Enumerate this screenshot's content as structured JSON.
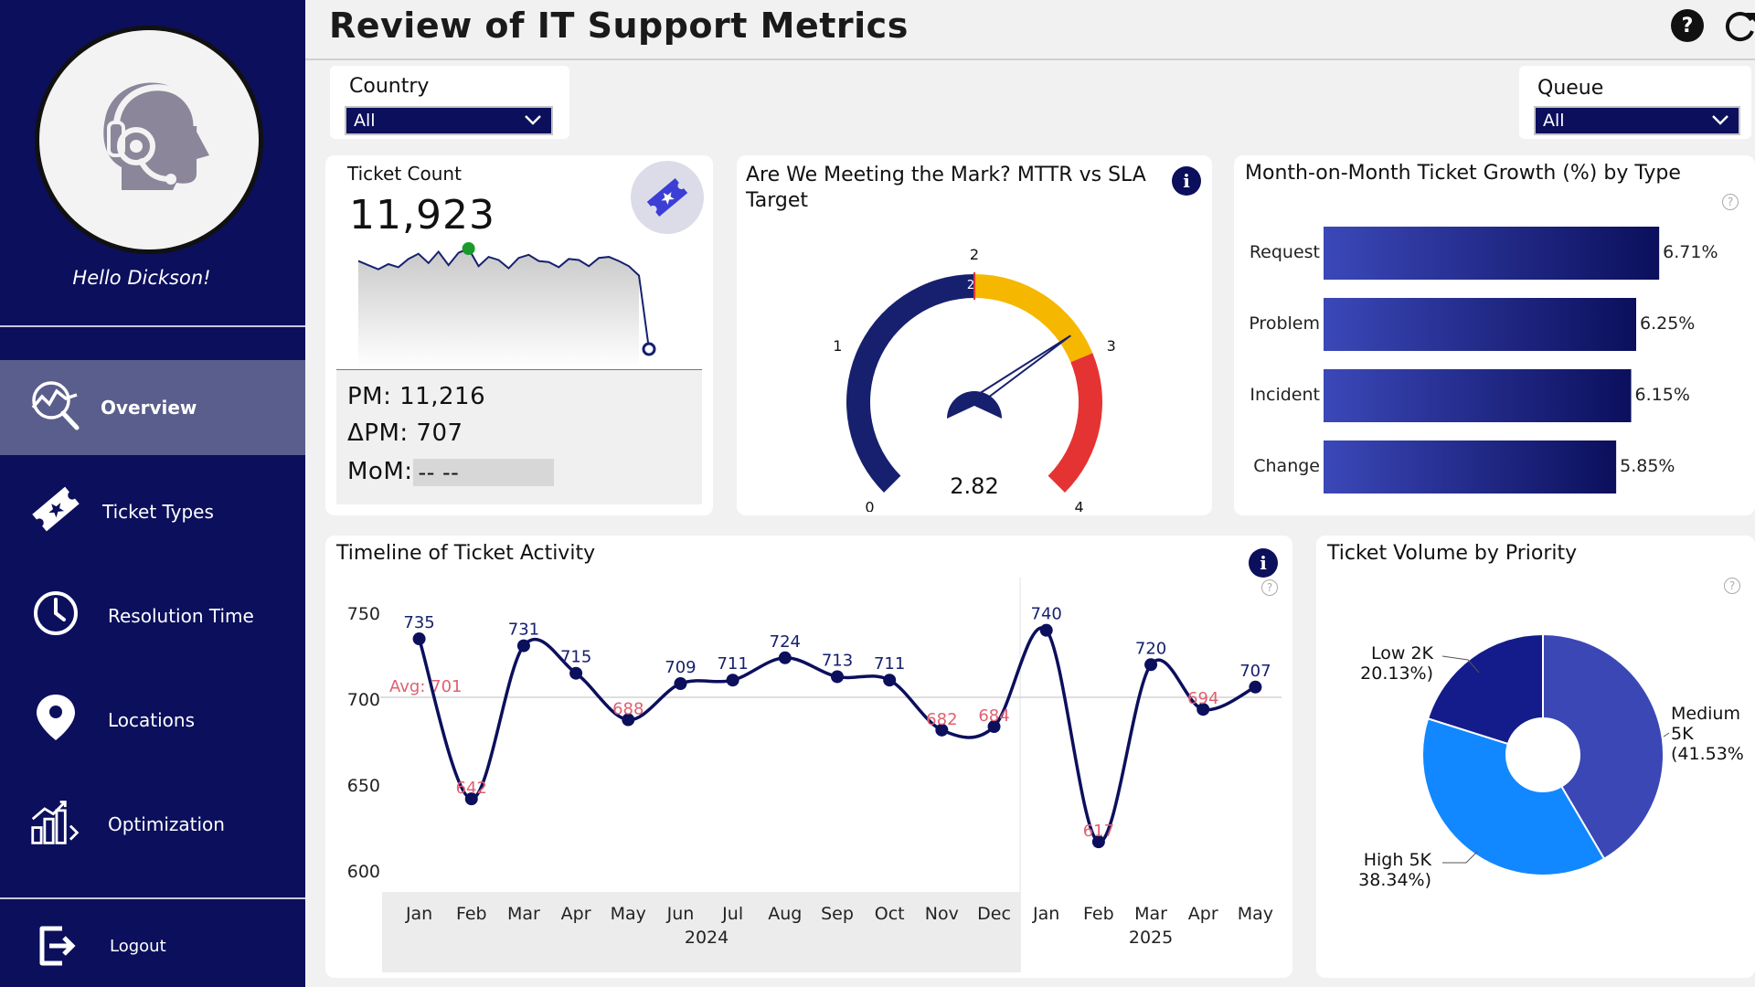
{
  "sidebar": {
    "greeting": "Hello Dickson!",
    "items": [
      {
        "label": "Overview",
        "icon": "chart-search-icon",
        "active": true
      },
      {
        "label": "Ticket Types",
        "icon": "ticket-icon"
      },
      {
        "label": "Resolution Time",
        "icon": "clock-icon"
      },
      {
        "label": "Locations",
        "icon": "map-pin-icon"
      },
      {
        "label": "Optimization",
        "icon": "bar-growth-icon"
      }
    ],
    "logout": "Logout"
  },
  "header": {
    "title": "Review of IT Support Metrics"
  },
  "filters": {
    "country": {
      "label": "Country",
      "value": "All"
    },
    "queue": {
      "label": "Queue",
      "value": "All"
    }
  },
  "kpi": {
    "label": "Ticket Count",
    "value": "11,923",
    "pm": "PM: 11,216",
    "delta_pm": "ΔPM: 707",
    "mom_label": "MoM:",
    "mom_value": "-- --"
  },
  "gauge": {
    "title_line1": "Are We Meeting the Mark? MTTR vs SLA",
    "title_line2": "Target",
    "value_label": "2.82",
    "target_label": "2",
    "tick_labels": [
      "0",
      "1",
      "2",
      "3",
      "4"
    ]
  },
  "growth": {
    "title": "Month-on-Month Ticket Growth (%) by Type"
  },
  "timeline": {
    "title": "Timeline of Ticket Activity",
    "avg_label": "Avg: 701",
    "year_labels": [
      "2024",
      "2025"
    ]
  },
  "priority": {
    "title": "Ticket Volume by Priority",
    "labels": {
      "low_1": "Low 2K",
      "low_2": "20.13%)",
      "medium_1": "Medium",
      "medium_2": "5K",
      "medium_3": "(41.53%",
      "high_1": "High 5K",
      "high_2": "38.34%)"
    }
  },
  "chart_data": [
    {
      "type": "line",
      "title": "Ticket Count sparkline",
      "values": [
        700,
        692,
        684,
        694,
        688,
        704,
        714,
        696,
        718,
        692,
        716,
        724,
        690,
        708,
        702,
        686,
        706,
        712,
        700,
        698,
        688,
        704,
        702,
        690,
        706,
        708,
        700,
        690,
        672,
        530
      ],
      "highlight_max_index": 11,
      "highlight_last": true
    },
    {
      "type": "gauge",
      "title": "Are We Meeting the Mark? MTTR vs SLA Target",
      "min": 0,
      "max": 4,
      "value": 2.82,
      "target": 2,
      "bands": [
        {
          "from": 0,
          "to": 2,
          "color": "#16206e"
        },
        {
          "from": 2,
          "to": 3,
          "color": "#f5b700"
        },
        {
          "from": 3,
          "to": 4,
          "color": "#e53333"
        }
      ]
    },
    {
      "type": "bar",
      "title": "Month-on-Month Ticket Growth (%) by Type",
      "categories": [
        "Request",
        "Problem",
        "Incident",
        "Change"
      ],
      "values": [
        6.71,
        6.25,
        6.15,
        5.85
      ],
      "value_labels": [
        "6.71%",
        "6.25%",
        "6.15%",
        "5.85%"
      ],
      "xlim": [
        0,
        7.2
      ]
    },
    {
      "type": "line",
      "title": "Timeline of Ticket Activity",
      "x": [
        "Jan",
        "Feb",
        "Mar",
        "Apr",
        "May",
        "Jun",
        "Jul",
        "Aug",
        "Sep",
        "Oct",
        "Nov",
        "Dec",
        "Jan",
        "Feb",
        "Mar",
        "Apr",
        "May"
      ],
      "values": [
        735,
        642,
        731,
        715,
        688,
        709,
        711,
        724,
        713,
        711,
        682,
        684,
        740,
        617,
        720,
        694,
        707
      ],
      "value_labels": [
        "735",
        "642",
        "731",
        "715",
        "688",
        "709",
        "711",
        "724",
        "713",
        "711",
        "682",
        "684",
        "740",
        "617",
        "720",
        "694",
        "707"
      ],
      "average": 701,
      "ylim": [
        590,
        760
      ],
      "yticks": [
        600,
        650,
        700,
        750
      ],
      "ytick_labels": [
        "600",
        "650",
        "700",
        "750"
      ],
      "years": [
        {
          "label": "2024",
          "from": 0,
          "to": 11
        },
        {
          "label": "2025",
          "from": 12,
          "to": 16
        }
      ]
    },
    {
      "type": "pie",
      "title": "Ticket Volume by Priority",
      "slices": [
        {
          "name": "Medium",
          "value": 41.53,
          "color": "#3a47b5"
        },
        {
          "name": "High",
          "value": 38.34,
          "color": "#1188ff"
        },
        {
          "name": "Low",
          "value": 20.13,
          "color": "#131c8a"
        }
      ],
      "donut": true
    }
  ]
}
